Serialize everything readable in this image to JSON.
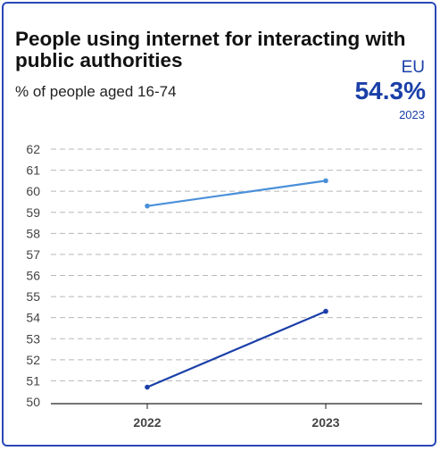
{
  "card": {
    "title": "People using internet for interacting with public authorities",
    "subtitle": "% of people aged 16-74",
    "region": "EU",
    "kpi_value": "54.3%",
    "kpi_year": "2023"
  },
  "colors": {
    "border": "#2a48b8",
    "series_dark": "#1a3fa8",
    "series_light": "#4a90d9",
    "grid": "#b8b8b8",
    "axis": "#222222"
  },
  "chart_data": {
    "type": "line",
    "x": [
      "2022",
      "2023"
    ],
    "ylim": [
      50,
      62
    ],
    "yticks": [
      50,
      51,
      52,
      53,
      54,
      55,
      56,
      57,
      58,
      59,
      60,
      61,
      62
    ],
    "grid": true,
    "series": [
      {
        "values": [
          59.3,
          60.5
        ],
        "color": "#4a90d9"
      },
      {
        "values": [
          50.7,
          54.3
        ],
        "color": "#1a3fa8"
      }
    ]
  }
}
